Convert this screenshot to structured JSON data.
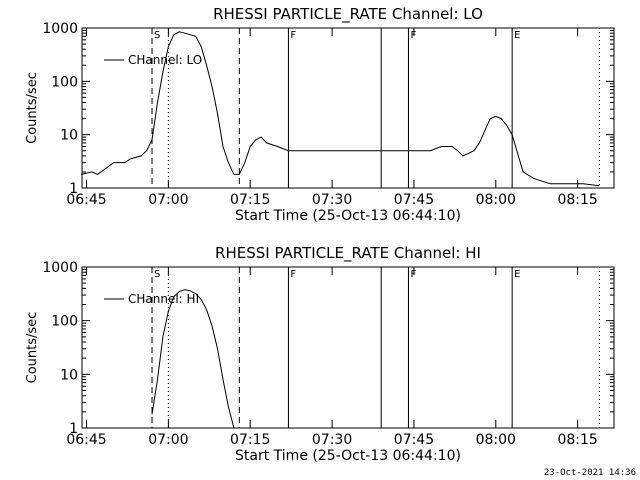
{
  "footer": {
    "timestamp": "23-Oct-2021 14:36"
  },
  "chart_data": [
    {
      "type": "line",
      "title": "RHESSI PARTICLE_RATE Channel: LO",
      "xlabel": "Start Time (25-Oct-13 06:44:10)",
      "ylabel": "Counts/sec",
      "yscale": "log",
      "ylim": [
        1,
        1000
      ],
      "xlim": [
        "06:44:10",
        "08:21:40"
      ],
      "yticks": [
        "1",
        "10",
        "100",
        "1000"
      ],
      "xticks": [
        "06:45",
        "07:00",
        "07:15",
        "07:30",
        "07:45",
        "08:00",
        "08:15"
      ],
      "legend": {
        "position": "top-left",
        "entries": [
          "CHannel: LO"
        ]
      },
      "markers": [
        {
          "label": "S",
          "time": "06:57",
          "style": "dashed"
        },
        {
          "label": "",
          "time": "07:00",
          "style": "dotted"
        },
        {
          "label": "",
          "time": "07:13",
          "style": "dashed"
        },
        {
          "label": "F",
          "time": "07:22",
          "style": "solid"
        },
        {
          "label": "",
          "time": "07:39",
          "style": "solid"
        },
        {
          "label": "F",
          "time": "07:44",
          "style": "solid"
        },
        {
          "label": "E",
          "time": "08:03",
          "style": "solid"
        },
        {
          "label": "",
          "time": "08:19",
          "style": "dotted"
        }
      ],
      "series": [
        {
          "name": "CHannel: LO",
          "x": [
            "06:44",
            "06:46",
            "06:47",
            "06:50",
            "06:52",
            "06:53",
            "06:55",
            "06:56",
            "06:57",
            "06:58",
            "06:59",
            "07:00",
            "07:01",
            "07:02",
            "07:03",
            "07:05",
            "07:06",
            "07:07",
            "07:08",
            "07:09",
            "07:10",
            "07:11",
            "07:12",
            "07:13",
            "07:14",
            "07:15",
            "07:16",
            "07:17",
            "07:18",
            "07:20",
            "07:22",
            "07:25",
            "07:30",
            "07:35",
            "07:40",
            "07:44",
            "07:48",
            "07:50",
            "07:52",
            "07:53",
            "07:54",
            "07:56",
            "07:57",
            "07:58",
            "07:59",
            "08:00",
            "08:01",
            "08:02",
            "08:03",
            "08:05",
            "08:07",
            "08:10",
            "08:13",
            "08:16",
            "08:19"
          ],
          "y": [
            1.8,
            2,
            1.8,
            3,
            3,
            3.5,
            4,
            5,
            8,
            40,
            150,
            450,
            750,
            850,
            800,
            700,
            450,
            200,
            80,
            25,
            6,
            3,
            1.8,
            1.8,
            3,
            6,
            8,
            9,
            7,
            6,
            5,
            5,
            5,
            5,
            5,
            5,
            5,
            6,
            6,
            5,
            4,
            5,
            7,
            12,
            20,
            22,
            20,
            15,
            10,
            2,
            1.5,
            1.2,
            1.2,
            1.2,
            1.1
          ]
        }
      ]
    },
    {
      "type": "line",
      "title": "RHESSI PARTICLE_RATE Channel: HI",
      "xlabel": "Start Time (25-Oct-13 06:44:10)",
      "ylabel": "Counts/sec",
      "yscale": "log",
      "ylim": [
        1,
        1000
      ],
      "xlim": [
        "06:44:10",
        "08:21:40"
      ],
      "yticks": [
        "1",
        "10",
        "100",
        "1000"
      ],
      "xticks": [
        "06:45",
        "07:00",
        "07:15",
        "07:30",
        "07:45",
        "08:00",
        "08:15"
      ],
      "legend": {
        "position": "top-left",
        "entries": [
          "CHannel: HI"
        ]
      },
      "markers": [
        {
          "label": "S",
          "time": "06:57",
          "style": "dashed"
        },
        {
          "label": "",
          "time": "07:00",
          "style": "dotted"
        },
        {
          "label": "",
          "time": "07:13",
          "style": "dashed"
        },
        {
          "label": "F",
          "time": "07:22",
          "style": "solid"
        },
        {
          "label": "",
          "time": "07:39",
          "style": "solid"
        },
        {
          "label": "F",
          "time": "07:44",
          "style": "solid"
        },
        {
          "label": "E",
          "time": "08:03",
          "style": "solid"
        },
        {
          "label": "",
          "time": "08:19",
          "style": "dotted"
        }
      ],
      "series": [
        {
          "name": "CHannel: HI",
          "x": [
            "06:57",
            "06:58",
            "06:59",
            "07:00",
            "07:01",
            "07:02",
            "07:03",
            "07:04",
            "07:05",
            "07:06",
            "07:07",
            "07:08",
            "07:09",
            "07:10",
            "07:11",
            "07:12"
          ],
          "y": [
            1.8,
            8,
            50,
            150,
            280,
            350,
            380,
            360,
            320,
            250,
            160,
            80,
            30,
            8,
            2.5,
            1
          ]
        }
      ]
    }
  ]
}
